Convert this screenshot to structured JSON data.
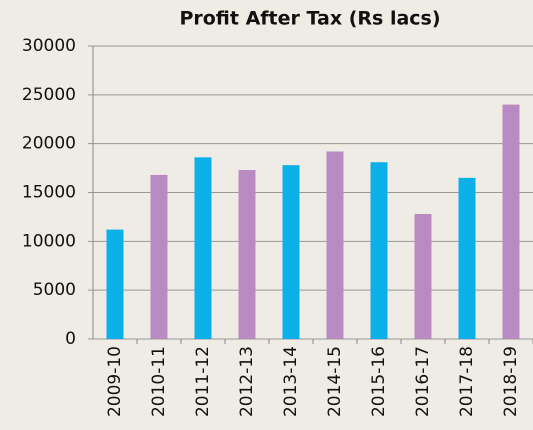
{
  "chart_data": {
    "type": "bar",
    "title": "Profit After Tax (Rs lacs)",
    "categories": [
      "2009-10",
      "2010-11",
      "2011-12",
      "2012-13",
      "2013-14",
      "2014-15",
      "2015-16",
      "2016-17",
      "2017-18",
      "2018-19"
    ],
    "values": [
      11200,
      16800,
      18600,
      17300,
      17800,
      19200,
      18100,
      12800,
      16500,
      24000
    ],
    "colors": [
      "#0cb0e8",
      "#b98bc2",
      "#0cb0e8",
      "#b98bc2",
      "#0cb0e8",
      "#b98bc2",
      "#0cb0e8",
      "#b98bc2",
      "#0cb0e8",
      "#b98bc2"
    ],
    "ylim": [
      0,
      30000
    ],
    "yticks": [
      0,
      5000,
      10000,
      15000,
      20000,
      25000,
      30000
    ],
    "grid": true
  }
}
